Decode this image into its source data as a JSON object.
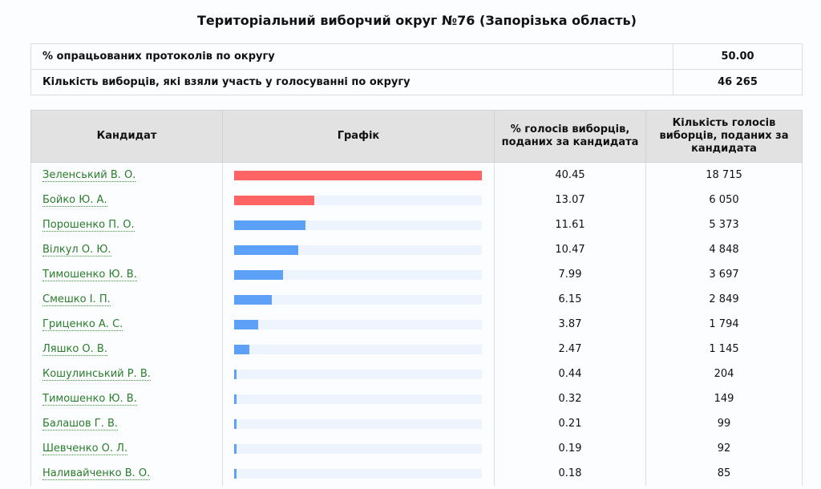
{
  "title": "Територіальний виборчий округ №76 (Запорізька область)",
  "summary": [
    {
      "label": "% опрацьованих протоколів по округу",
      "value": "50.00"
    },
    {
      "label": "Кількість виборців, які взяли участь у голосуванні по округу",
      "value": "46 265"
    }
  ],
  "headers": {
    "candidate": "Кандидат",
    "chart": "Графік",
    "percent": "% голосів виборців, поданих за кандидата",
    "votes": "Кількість голосів виборців, поданих за кандидата"
  },
  "colors": {
    "leader": "#ff6464",
    "other": "#5ca0f8",
    "track": "#eef4fd",
    "link": "#2a7d2a"
  },
  "chart_data": {
    "type": "bar",
    "orientation": "horizontal",
    "max": 40.45,
    "rows": [
      {
        "name": "Зеленський В. О.",
        "percent": 40.45,
        "votes": "18 715",
        "highlight": true
      },
      {
        "name": "Бойко Ю. А.",
        "percent": 13.07,
        "votes": "6 050",
        "highlight": true
      },
      {
        "name": "Порошенко П. О.",
        "percent": 11.61,
        "votes": "5 373"
      },
      {
        "name": "Вілкул О. Ю.",
        "percent": 10.47,
        "votes": "4 848"
      },
      {
        "name": "Тимошенко Ю. В.",
        "percent": 7.99,
        "votes": "3 697"
      },
      {
        "name": "Смешко І. П.",
        "percent": 6.15,
        "votes": "2 849"
      },
      {
        "name": "Гриценко А. С.",
        "percent": 3.87,
        "votes": "1 794"
      },
      {
        "name": "Ляшко О. В.",
        "percent": 2.47,
        "votes": "1 145"
      },
      {
        "name": "Кошулинський Р. В.",
        "percent": 0.44,
        "votes": "204"
      },
      {
        "name": "Тимошенко Ю. В.",
        "percent": 0.32,
        "votes": "149"
      },
      {
        "name": "Балашов Г. В.",
        "percent": 0.21,
        "votes": "99"
      },
      {
        "name": "Шевченко О. Л.",
        "percent": 0.19,
        "votes": "92"
      },
      {
        "name": "Наливайченко В. О.",
        "percent": 0.18,
        "votes": "85"
      }
    ]
  }
}
